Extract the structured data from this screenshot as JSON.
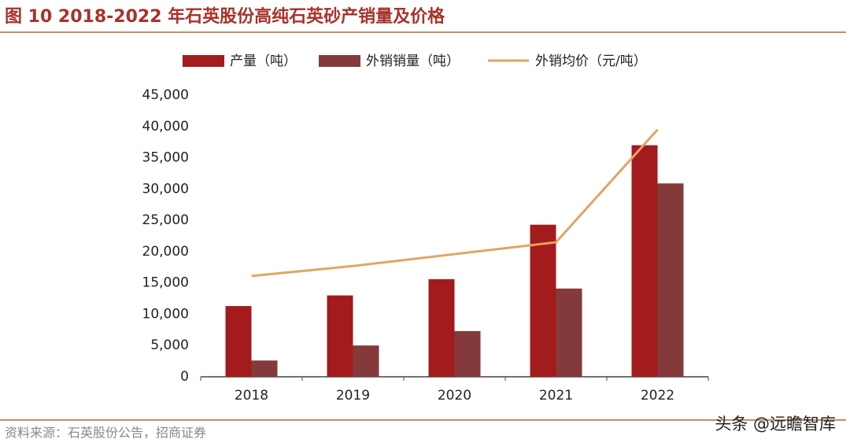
{
  "chart_data": {
    "type": "bar_line",
    "title": "图 10 2018-2022 年石英股份高纯石英砂产销量及价格",
    "categories": [
      "2018",
      "2019",
      "2020",
      "2021",
      "2022"
    ],
    "series": [
      {
        "name": "产量（吨）",
        "type": "bar",
        "color": "#a31b1c",
        "values": [
          11300,
          13000,
          15600,
          24300,
          37000
        ]
      },
      {
        "name": "外销销量（吨）",
        "type": "bar",
        "color": "#843a3a",
        "values": [
          2600,
          5000,
          7300,
          14100,
          30900
        ]
      },
      {
        "name": "外销均价（元/吨）",
        "type": "line",
        "color": "#e2a463",
        "values": [
          16100,
          17700,
          19600,
          21500,
          39500
        ]
      }
    ],
    "ylim": [
      0,
      45000
    ],
    "yticks": [
      0,
      {
        "value": 5000,
        "label": "5,000"
      },
      {
        "value": 10000,
        "label": "10,000"
      },
      {
        "value": 15000,
        "label": "15,000"
      },
      {
        "value": 20000,
        "label": "20,000"
      },
      {
        "value": 25000,
        "label": "25,000"
      },
      {
        "value": 30000,
        "label": "30,000"
      },
      {
        "value": 35000,
        "label": "35,000"
      },
      {
        "value": 40000,
        "label": "40,000"
      },
      {
        "value": 45000,
        "label": "45,000"
      }
    ],
    "grid": false,
    "source": "资料来源：石英股份公告，招商证券",
    "watermark": "头条 @远瞻智库"
  }
}
